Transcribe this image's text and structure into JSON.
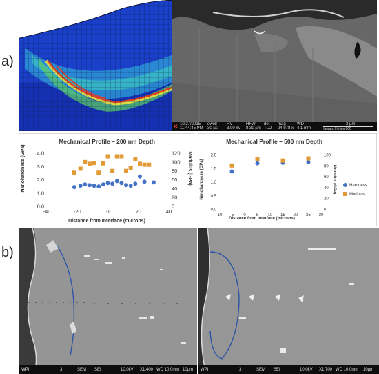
{
  "panel_labels": {
    "a": "a)",
    "b": "b)"
  },
  "colors": {
    "hardness": "#4472c4",
    "modulus": "#e29a36",
    "trace": "#2d54a6"
  },
  "micrograph_top": {
    "info_labels": [
      "10/27/2015",
      "dwell",
      "HV",
      "HFW",
      "det",
      "mag",
      "WD"
    ],
    "info_values": [
      "11:44:45 PM",
      "30 µs",
      "3.00 kV",
      "8.30 µm",
      "TLD",
      "24 978 x",
      "4.1 mm"
    ],
    "scale": "2 µm",
    "instrument": "Harvard Helios 660"
  },
  "micrograph_left": {
    "bar_items": [
      "WPI",
      "3",
      "SEM",
      "SEI",
      "10.0kV",
      "X1,400",
      "WD 10.0mm"
    ],
    "scale": "10µm"
  },
  "micrograph_right": {
    "bar_items": [
      "WPI",
      "3",
      "SEM",
      "SEI",
      "10.0kV",
      "X1,700",
      "WD 10.0mm"
    ],
    "scale": "10µm"
  },
  "chart_data": [
    {
      "type": "scatter",
      "title": "Mechanical Profile – 200 nm Depth",
      "xlabel": "Distance from Interface (microns)",
      "ylabel_left": "Nanohardness (GPa)",
      "ylabel_right": "Modulus (GPa)",
      "xlim": [
        -40,
        40
      ],
      "xticks": [
        "-40",
        "-20",
        "0",
        "20",
        "40"
      ],
      "ylim_left": [
        0,
        4
      ],
      "yticks_left": [
        "0.0",
        "1.0",
        "2.0",
        "3.0",
        "4.0"
      ],
      "ylim_right": [
        0,
        120
      ],
      "yticks_right": [
        "0",
        "20",
        "40",
        "60",
        "80",
        "100",
        "120"
      ],
      "grid": false,
      "series": [
        {
          "axis": "left",
          "x": [
            -22,
            -18,
            -15,
            -12,
            -9,
            -6,
            -3,
            0,
            3,
            6,
            9,
            12,
            15,
            18,
            21,
            24,
            30
          ],
          "values": [
            1.45,
            1.55,
            1.65,
            1.6,
            1.55,
            1.5,
            1.65,
            1.75,
            1.7,
            1.9,
            1.75,
            1.6,
            1.55,
            1.7,
            2.25,
            1.85,
            1.8
          ]
        },
        {
          "axis": "right",
          "x": [
            -22,
            -18,
            -15,
            -12,
            -9,
            -6,
            -3,
            0,
            3,
            6,
            9,
            12,
            15,
            18,
            21,
            24,
            27
          ],
          "values": [
            76,
            85,
            100,
            96,
            98,
            76,
            97,
            113,
            80,
            113,
            113,
            80,
            87,
            106,
            96,
            94,
            94
          ]
        }
      ]
    },
    {
      "type": "scatter",
      "title": "Mechanical Profile – 500 nm Depth",
      "xlabel": "Distance from Interface (microns)",
      "ylabel_left": "Nanohardness (GPa)",
      "ylabel_right": "Modulus (GPa)",
      "xlim": [
        -10,
        30
      ],
      "xticks": [
        "-10",
        "-5",
        "0",
        "5",
        "10",
        "15",
        "20",
        "25",
        "30"
      ],
      "ylim_left": [
        0,
        2
      ],
      "yticks_left": [
        "0.0",
        "0.5",
        "1.0",
        "1.5",
        "2.0"
      ],
      "ylim_right": [
        0,
        100
      ],
      "yticks_right": [
        "0",
        "20",
        "40",
        "60",
        "80",
        "100"
      ],
      "grid": false,
      "legend": "right",
      "series": [
        {
          "name": "Hardness",
          "axis": "left",
          "x": [
            -5,
            5,
            15,
            25
          ],
          "values": [
            1.38,
            1.68,
            1.7,
            1.72
          ]
        },
        {
          "name": "Modulus",
          "axis": "right",
          "x": [
            -5,
            5,
            15,
            25
          ],
          "values": [
            80,
            92,
            89,
            93
          ]
        }
      ]
    }
  ]
}
